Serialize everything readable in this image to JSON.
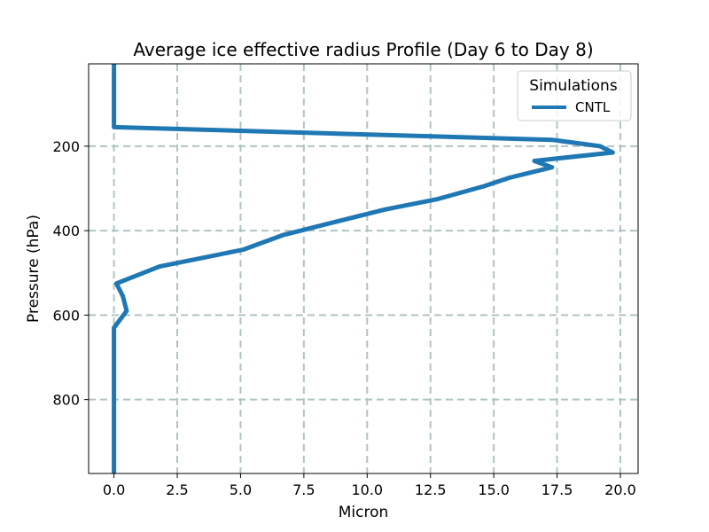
{
  "chart_data": {
    "type": "line",
    "title": "Average ice effective radius Profile (Day 6 to Day 8)",
    "xlabel": "Micron",
    "ylabel": "Pressure (hPa)",
    "xlim": [
      -1.0,
      20.7
    ],
    "ylim": [
      975,
      5
    ],
    "y_inverted": true,
    "xticks": [
      0.0,
      2.5,
      5.0,
      7.5,
      10.0,
      12.5,
      15.0,
      17.5,
      20.0
    ],
    "xtick_labels": [
      "0.0",
      "2.5",
      "5.0",
      "7.5",
      "10.0",
      "12.5",
      "15.0",
      "17.5",
      "20.0"
    ],
    "yticks": [
      200,
      400,
      600,
      800
    ],
    "ytick_labels": [
      "200",
      "400",
      "600",
      "800"
    ],
    "grid": true,
    "legend": {
      "title": "Simulations",
      "position": "top-right",
      "entries": [
        "CNTL"
      ]
    },
    "series": [
      {
        "name": "CNTL",
        "color": "#1f77b4",
        "x": [
          0.0,
          0.0,
          17.3,
          19.2,
          19.7,
          16.6,
          17.3,
          15.6,
          14.6,
          12.8,
          10.7,
          8.7,
          6.7,
          5.1,
          1.8,
          0.1,
          0.35,
          0.5,
          0.0,
          0.0
        ],
        "y": [
          5,
          155,
          185,
          200,
          215,
          235,
          250,
          275,
          295,
          325,
          350,
          380,
          410,
          445,
          485,
          525,
          555,
          590,
          630,
          975
        ]
      }
    ]
  }
}
